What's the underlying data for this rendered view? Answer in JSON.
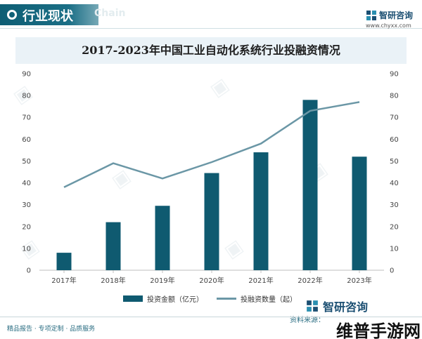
{
  "header": {
    "section_title": "行业现状",
    "section_title_en": "Chain"
  },
  "brand": {
    "name": "智研咨询",
    "url": "www.chyxx.com"
  },
  "chart_data": {
    "type": "bar+line",
    "title": "2017-2023年中国工业自动化系统行业投融资情况",
    "categories": [
      "2017年",
      "2018年",
      "2019年",
      "2020年",
      "2021年",
      "2022年",
      "2023年"
    ],
    "series": [
      {
        "name": "投资金额（亿元）",
        "type": "bar",
        "axis": "left",
        "color": "#0f5a70",
        "values": [
          8,
          22,
          29.5,
          44.5,
          54,
          78,
          52
        ]
      },
      {
        "name": "投融资数量（起）",
        "type": "line",
        "axis": "right",
        "color": "#6b97a6",
        "values": [
          38,
          49,
          42,
          49.5,
          58,
          73,
          77
        ]
      }
    ],
    "ylim_left": [
      0,
      90
    ],
    "ylim_right": [
      0,
      90
    ],
    "y_ticks_left": [
      "0",
      "10",
      "20",
      "30",
      "40",
      "50",
      "60",
      "70",
      "80",
      "90"
    ],
    "y_ticks_right": [
      "0",
      "10",
      "20",
      "30",
      "40",
      "50",
      "60",
      "70",
      "80",
      "90"
    ],
    "grid": false,
    "legend_position": "bottom-center"
  },
  "legend": {
    "bar_label": "投资金额（亿元）",
    "line_label": "投融资数量（起）"
  },
  "footer": {
    "left_text": "精品报告 · 专项定制 · 品质服务",
    "brand": "智研咨询",
    "source": "资料来源：",
    "corner_mark": "维普手游网"
  }
}
